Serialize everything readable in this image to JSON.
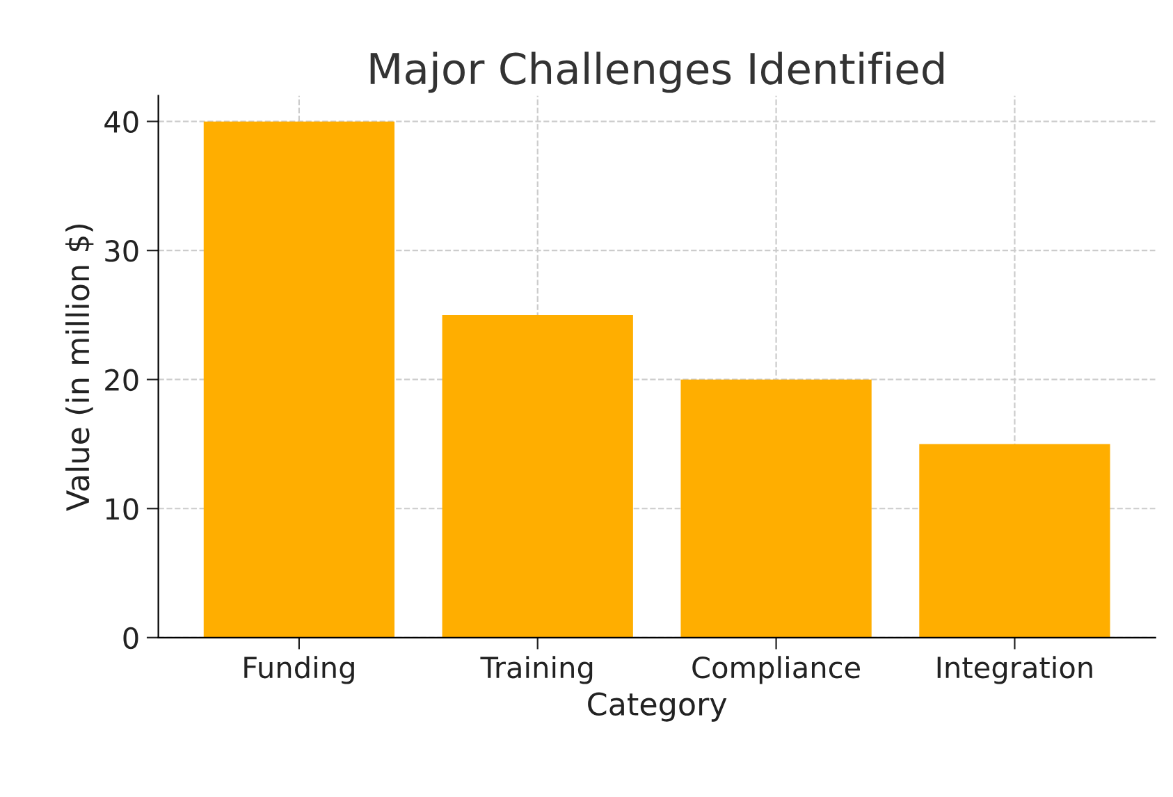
{
  "chart_data": {
    "type": "bar",
    "title": "Major Challenges Identified",
    "xlabel": "Category",
    "ylabel": "Value (in million $)",
    "categories": [
      "Funding",
      "Training",
      "Compliance",
      "Integration"
    ],
    "values": [
      40,
      25,
      20,
      15
    ],
    "color": "#ffae00",
    "ylim": [
      0,
      42
    ],
    "yticks": [
      0,
      10,
      20,
      30,
      40
    ],
    "grid": true
  }
}
